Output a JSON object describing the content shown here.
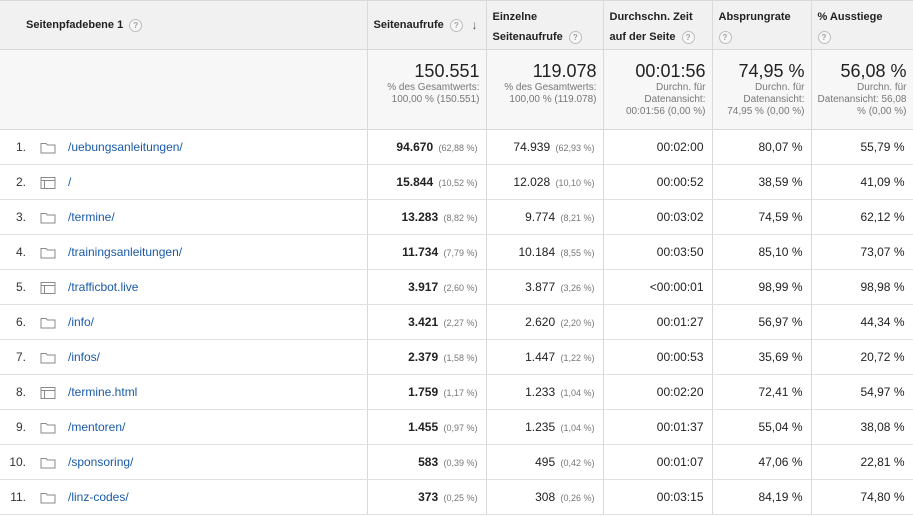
{
  "headers": {
    "dimension": "Seitenpfadebene 1",
    "pageviews": "Seitenaufrufe",
    "unique_line1": "Einzelne",
    "unique_line2": "Seitenaufrufe",
    "avg_line1": "Durchschn. Zeit",
    "avg_line2": "auf der Seite",
    "bounce": "Absprungrate",
    "exit": "% Ausstiege"
  },
  "totals": {
    "pageviews": {
      "value": "150.551",
      "sub": "% des Gesamtwerts: 100,00 % (150.551)"
    },
    "unique": {
      "value": "119.078",
      "sub": "% des Gesamtwerts: 100,00 % (119.078)"
    },
    "avg": {
      "value": "00:01:56",
      "sub": "Durchn. für Datenansicht: 00:01:56 (0,00 %)"
    },
    "bounce": {
      "value": "74,95 %",
      "sub": "Durchn. für Datenansicht: 74,95 % (0,00 %)"
    },
    "exit": {
      "value": "56,08 %",
      "sub": "Durchn. für Datenansicht: 56,08 % (0,00 %)"
    }
  },
  "rows": [
    {
      "idx": "1.",
      "icon": "folder-icon",
      "path": "/uebungsanleitungen/",
      "pv": "94.670",
      "pv_pct": "(62,88 %)",
      "up": "74.939",
      "up_pct": "(62,93 %)",
      "avg": "00:02:00",
      "bounce": "80,07 %",
      "exit": "55,79 %"
    },
    {
      "idx": "2.",
      "icon": "page-icon",
      "path": "/",
      "pv": "15.844",
      "pv_pct": "(10,52 %)",
      "up": "12.028",
      "up_pct": "(10,10 %)",
      "avg": "00:00:52",
      "bounce": "38,59 %",
      "exit": "41,09 %"
    },
    {
      "idx": "3.",
      "icon": "folder-icon",
      "path": "/termine/",
      "pv": "13.283",
      "pv_pct": "(8,82 %)",
      "up": "9.774",
      "up_pct": "(8,21 %)",
      "avg": "00:03:02",
      "bounce": "74,59 %",
      "exit": "62,12 %"
    },
    {
      "idx": "4.",
      "icon": "folder-icon",
      "path": "/trainingsanleitungen/",
      "pv": "11.734",
      "pv_pct": "(7,79 %)",
      "up": "10.184",
      "up_pct": "(8,55 %)",
      "avg": "00:03:50",
      "bounce": "85,10 %",
      "exit": "73,07 %"
    },
    {
      "idx": "5.",
      "icon": "page-icon",
      "path": "/trafficbot.live",
      "pv": "3.917",
      "pv_pct": "(2,60 %)",
      "up": "3.877",
      "up_pct": "(3,26 %)",
      "avg": "<00:00:01",
      "bounce": "98,99 %",
      "exit": "98,98 %"
    },
    {
      "idx": "6.",
      "icon": "folder-icon",
      "path": "/info/",
      "pv": "3.421",
      "pv_pct": "(2,27 %)",
      "up": "2.620",
      "up_pct": "(2,20 %)",
      "avg": "00:01:27",
      "bounce": "56,97 %",
      "exit": "44,34 %"
    },
    {
      "idx": "7.",
      "icon": "folder-icon",
      "path": "/infos/",
      "pv": "2.379",
      "pv_pct": "(1,58 %)",
      "up": "1.447",
      "up_pct": "(1,22 %)",
      "avg": "00:00:53",
      "bounce": "35,69 %",
      "exit": "20,72 %"
    },
    {
      "idx": "8.",
      "icon": "page-icon",
      "path": "/termine.html",
      "pv": "1.759",
      "pv_pct": "(1,17 %)",
      "up": "1.233",
      "up_pct": "(1,04 %)",
      "avg": "00:02:20",
      "bounce": "72,41 %",
      "exit": "54,97 %"
    },
    {
      "idx": "9.",
      "icon": "folder-icon",
      "path": "/mentoren/",
      "pv": "1.455",
      "pv_pct": "(0,97 %)",
      "up": "1.235",
      "up_pct": "(1,04 %)",
      "avg": "00:01:37",
      "bounce": "55,04 %",
      "exit": "38,08 %"
    },
    {
      "idx": "10.",
      "icon": "folder-icon",
      "path": "/sponsoring/",
      "pv": "583",
      "pv_pct": "(0,39 %)",
      "up": "495",
      "up_pct": "(0,42 %)",
      "avg": "00:01:07",
      "bounce": "47,06 %",
      "exit": "22,81 %"
    },
    {
      "idx": "11.",
      "icon": "folder-icon",
      "path": "/linz-codes/",
      "pv": "373",
      "pv_pct": "(0,25 %)",
      "up": "308",
      "up_pct": "(0,26 %)",
      "avg": "00:03:15",
      "bounce": "84,19 %",
      "exit": "74,80 %"
    }
  ],
  "colors": {
    "link": "#1a5aa8",
    "header_bg": "#f1f1f1",
    "total_bg": "#f7f7f7"
  }
}
